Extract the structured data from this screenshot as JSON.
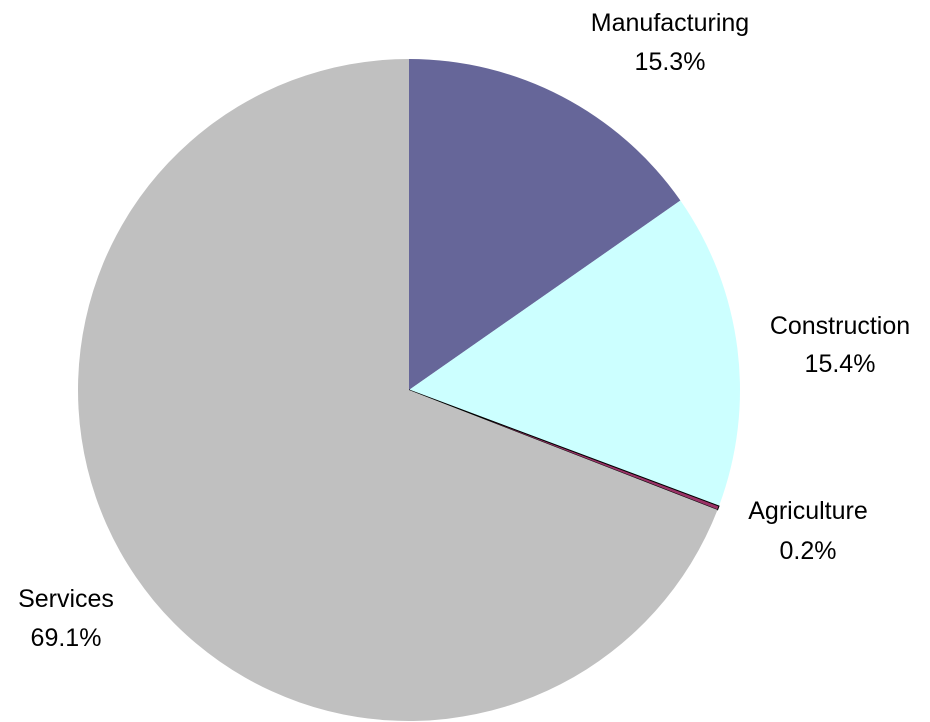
{
  "chart_data": {
    "type": "pie",
    "slices": [
      {
        "label": "Manufacturing",
        "value": 15.3,
        "pct_label": "15.3%",
        "color": "#666699"
      },
      {
        "label": "Construction",
        "value": 15.4,
        "pct_label": "15.4%",
        "color": "#ccffff"
      },
      {
        "label": "Agriculture",
        "value": 0.2,
        "pct_label": "0.2%",
        "color": "#993366"
      },
      {
        "label": "Services",
        "value": 69.1,
        "pct_label": "69.1%",
        "color": "#c0c0c0"
      }
    ],
    "start_angle": "12 o'clock",
    "direction": "clockwise",
    "legend": "none"
  }
}
